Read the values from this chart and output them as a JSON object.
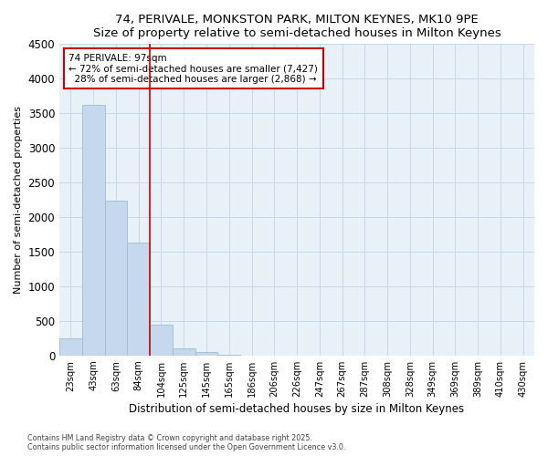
{
  "title1": "74, PERIVALE, MONKSTON PARK, MILTON KEYNES, MK10 9PE",
  "title2": "Size of property relative to semi-detached houses in Milton Keynes",
  "xlabel": "Distribution of semi-detached houses by size in Milton Keynes",
  "ylabel": "Number of semi-detached properties",
  "categories": [
    "23sqm",
    "43sqm",
    "63sqm",
    "84sqm",
    "104sqm",
    "125sqm",
    "145sqm",
    "165sqm",
    "186sqm",
    "206sqm",
    "226sqm",
    "247sqm",
    "267sqm",
    "287sqm",
    "308sqm",
    "328sqm",
    "349sqm",
    "369sqm",
    "389sqm",
    "410sqm",
    "430sqm"
  ],
  "values": [
    250,
    3620,
    2240,
    1630,
    450,
    100,
    50,
    10,
    0,
    0,
    0,
    0,
    0,
    0,
    0,
    0,
    0,
    0,
    0,
    0,
    0
  ],
  "bar_color": "#c6d8ed",
  "bar_edge_color": "#a0bcd0",
  "red_line_index": 4,
  "property_sqm": 97,
  "pct_smaller": 72,
  "pct_larger": 28,
  "count_smaller": 7427,
  "count_larger": 2868,
  "ylim": [
    0,
    4500
  ],
  "yticks": [
    0,
    500,
    1000,
    1500,
    2000,
    2500,
    3000,
    3500,
    4000,
    4500
  ],
  "annotation_box_color": "#ffffff",
  "annotation_box_edge_color": "#cc0000",
  "grid_color": "#c8d8e8",
  "footnote1": "Contains HM Land Registry data © Crown copyright and database right 2025.",
  "footnote2": "Contains public sector information licensed under the Open Government Licence v3.0.",
  "bg_color": "#ffffff",
  "plot_bg_color": "#e8f0f8"
}
